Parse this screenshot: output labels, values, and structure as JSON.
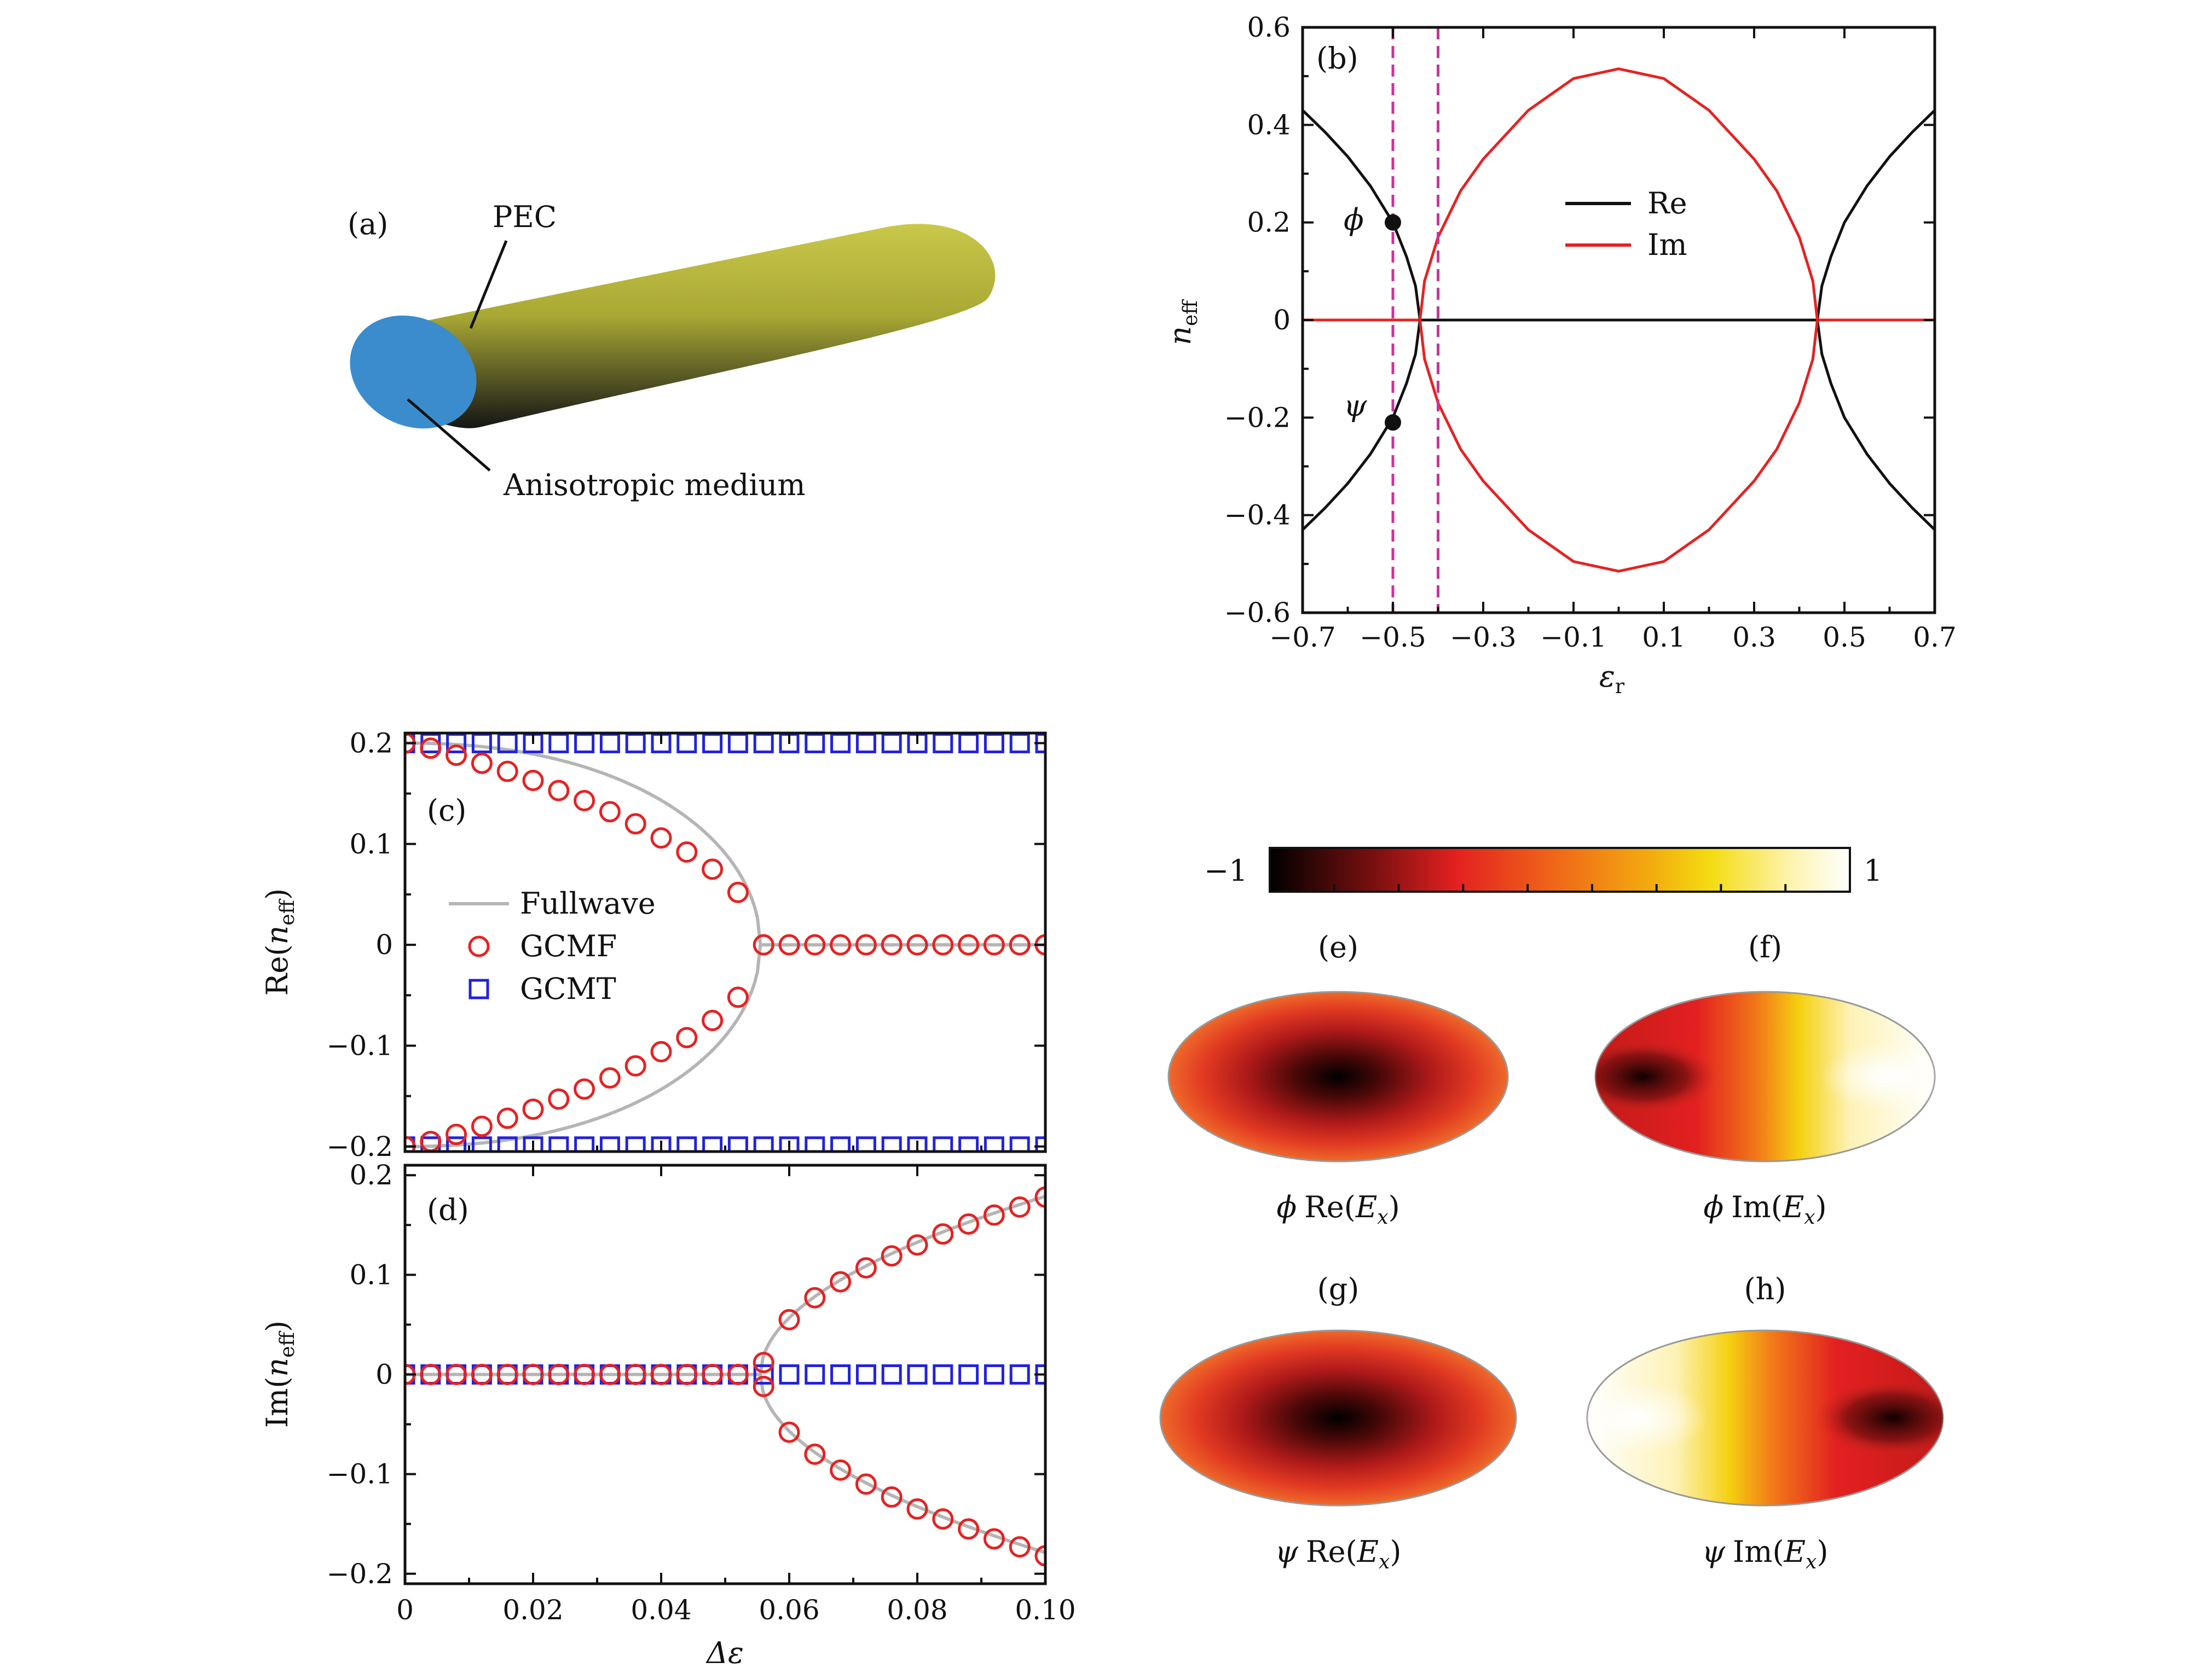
{
  "panel_a": {
    "label": "(a)",
    "pec_label": "PEC",
    "medium_label": "Anisotropic medium",
    "colors": {
      "cylinder": "#b5b536",
      "face": "#3b8ccc"
    }
  },
  "chart_data": [
    {
      "id": "b",
      "type": "line",
      "panel_label": "(b)",
      "xlabel": "εr",
      "ylabel": "neff",
      "xlim": [
        -0.7,
        0.7
      ],
      "ylim": [
        -0.6,
        0.6
      ],
      "xticks": [
        -0.7,
        -0.5,
        -0.3,
        -0.1,
        0.1,
        0.3,
        0.5,
        0.7
      ],
      "xtick_labels": [
        "−0.7",
        "−0.5",
        "−0.3",
        "−0.1",
        "0.1",
        "0.3",
        "0.5",
        "0.7"
      ],
      "yticks": [
        -0.6,
        -0.4,
        -0.2,
        0,
        0.2,
        0.4,
        0.6
      ],
      "ytick_labels": [
        "−0.6",
        "−0.4",
        "−0.2",
        "0",
        "0.2",
        "0.4",
        "0.6"
      ],
      "legend": [
        "Re",
        "Im"
      ],
      "legend_position": "upper-center",
      "series": [
        {
          "name": "Re",
          "color": "#111111",
          "x": [
            -0.7,
            -0.65,
            -0.6,
            -0.55,
            -0.5,
            -0.47,
            -0.45,
            -0.44,
            0.44,
            0.45,
            0.47,
            0.5,
            0.55,
            0.6,
            0.65,
            0.7
          ],
          "y_upper": [
            0.43,
            0.385,
            0.335,
            0.275,
            0.2,
            0.13,
            0.07,
            0.0,
            0.0,
            0.07,
            0.13,
            0.2,
            0.275,
            0.335,
            0.385,
            0.43
          ],
          "y_lower": [
            -0.43,
            -0.385,
            -0.335,
            -0.275,
            -0.2,
            -0.13,
            -0.07,
            0.0,
            0.0,
            -0.07,
            -0.13,
            -0.2,
            -0.275,
            -0.335,
            -0.385,
            -0.43
          ]
        },
        {
          "name": "Im",
          "color": "#e52222",
          "x": [
            -0.44,
            -0.43,
            -0.4,
            -0.35,
            -0.3,
            -0.2,
            -0.1,
            0.0,
            0.1,
            0.2,
            0.3,
            0.35,
            0.4,
            0.43,
            0.44
          ],
          "y_upper": [
            0.0,
            0.08,
            0.17,
            0.265,
            0.33,
            0.43,
            0.495,
            0.515,
            0.495,
            0.43,
            0.33,
            0.265,
            0.17,
            0.08,
            0.0
          ],
          "y_lower": [
            0.0,
            -0.08,
            -0.17,
            -0.265,
            -0.33,
            -0.43,
            -0.495,
            -0.515,
            -0.495,
            -0.43,
            -0.33,
            -0.265,
            -0.17,
            -0.08,
            0.0
          ]
        }
      ],
      "vlines": {
        "values": [
          -0.5,
          -0.4
        ],
        "color": "#cc3399"
      },
      "markers": [
        {
          "name": "ϕ",
          "x": -0.5,
          "y": 0.2
        },
        {
          "name": "ψ",
          "x": -0.5,
          "y": -0.21
        }
      ]
    },
    {
      "id": "c",
      "type": "scatter",
      "panel_label": "(c)",
      "xlabel": "",
      "ylabel": "Re(neff)",
      "xlim": [
        0,
        0.1
      ],
      "ylim": [
        -0.205,
        0.21
      ],
      "yticks": [
        -0.2,
        -0.1,
        0,
        0.1,
        0.2
      ],
      "ytick_labels": [
        "−0.2",
        "−0.1",
        "0",
        "0.1",
        "0.2"
      ],
      "legend": [
        "Fullwave",
        "GCMF",
        "GCMT"
      ],
      "legend_position": "center-left",
      "gcmf": {
        "x": [
          0,
          0.004,
          0.008,
          0.012,
          0.016,
          0.02,
          0.024,
          0.028,
          0.032,
          0.036,
          0.04,
          0.044,
          0.048,
          0.052,
          0.056,
          0.06,
          0.064,
          0.068,
          0.072,
          0.076,
          0.08,
          0.084,
          0.088,
          0.092,
          0.096,
          0.1
        ],
        "upper": [
          0.2,
          0.195,
          0.188,
          0.18,
          0.172,
          0.163,
          0.153,
          0.143,
          0.132,
          0.12,
          0.106,
          0.092,
          0.075,
          0.052,
          0,
          0,
          0,
          0,
          0,
          0,
          0,
          0,
          0,
          0,
          0,
          0
        ],
        "lower": [
          -0.2,
          -0.195,
          -0.188,
          -0.18,
          -0.172,
          -0.163,
          -0.153,
          -0.143,
          -0.132,
          -0.12,
          -0.106,
          -0.092,
          -0.075,
          -0.052,
          0,
          0,
          0,
          0,
          0,
          0,
          0,
          0,
          0,
          0,
          0,
          0
        ]
      },
      "gcmt": {
        "x": [
          0,
          0.004,
          0.008,
          0.012,
          0.016,
          0.02,
          0.024,
          0.028,
          0.032,
          0.036,
          0.04,
          0.044,
          0.048,
          0.052,
          0.056,
          0.06,
          0.064,
          0.068,
          0.072,
          0.076,
          0.08,
          0.084,
          0.088,
          0.092,
          0.096,
          0.1
        ],
        "upper": 0.2,
        "lower": -0.2
      },
      "fullwave_ep": 0.0555,
      "colors": {
        "gcmf": "#e52222",
        "gcmt": "#2222dd",
        "fullwave": "#b5b5b5"
      }
    },
    {
      "id": "d",
      "type": "scatter",
      "panel_label": "(d)",
      "xlabel": "Δε",
      "ylabel": "Im(neff)",
      "xlim": [
        0,
        0.1
      ],
      "ylim": [
        -0.21,
        0.21
      ],
      "xticks": [
        0,
        0.02,
        0.04,
        0.06,
        0.08,
        0.1
      ],
      "xtick_labels": [
        "0",
        "0.02",
        "0.04",
        "0.06",
        "0.08",
        "0.10"
      ],
      "yticks": [
        -0.2,
        -0.1,
        0,
        0.1,
        0.2
      ],
      "ytick_labels": [
        "−0.2",
        "−0.1",
        "0",
        "0.1",
        "0.2"
      ],
      "gcmf": {
        "x": [
          0,
          0.004,
          0.008,
          0.012,
          0.016,
          0.02,
          0.024,
          0.028,
          0.032,
          0.036,
          0.04,
          0.044,
          0.048,
          0.052,
          0.056,
          0.06,
          0.064,
          0.068,
          0.072,
          0.076,
          0.08,
          0.084,
          0.088,
          0.092,
          0.096,
          0.1
        ],
        "upper": [
          0,
          0,
          0,
          0,
          0,
          0,
          0,
          0,
          0,
          0,
          0,
          0,
          0,
          0,
          0.012,
          0.055,
          0.077,
          0.093,
          0.107,
          0.119,
          0.13,
          0.141,
          0.151,
          0.16,
          0.168,
          0.178
        ],
        "lower": [
          0,
          0,
          0,
          0,
          0,
          0,
          0,
          0,
          0,
          0,
          0,
          0,
          0,
          0,
          -0.012,
          -0.058,
          -0.08,
          -0.096,
          -0.11,
          -0.123,
          -0.135,
          -0.145,
          -0.155,
          -0.165,
          -0.173,
          -0.182
        ]
      },
      "gcmt": {
        "x": [
          0,
          0.004,
          0.008,
          0.012,
          0.016,
          0.02,
          0.024,
          0.028,
          0.032,
          0.036,
          0.04,
          0.044,
          0.048,
          0.052,
          0.056,
          0.06,
          0.064,
          0.068,
          0.072,
          0.076,
          0.08,
          0.084,
          0.088,
          0.092,
          0.096,
          0.1
        ],
        "value": 0
      },
      "fullwave_ep": 0.0555,
      "colors": {
        "gcmf": "#e52222",
        "gcmt": "#2222dd",
        "fullwave": "#b5b5b5"
      }
    },
    {
      "id": "colorbar",
      "type": "heatmap",
      "min_label": "−1",
      "max_label": "1",
      "range": [
        -1,
        1
      ],
      "panels": [
        {
          "label": "(e)",
          "caption_mode": "ϕ",
          "caption_part": "Re",
          "caption_field": "Ex",
          "pattern": "center-dark"
        },
        {
          "label": "(f)",
          "caption_mode": "ϕ",
          "caption_part": "Im",
          "caption_field": "Ex",
          "pattern": "left-dark-right-bright"
        },
        {
          "label": "(g)",
          "caption_mode": "ψ",
          "caption_part": "Re",
          "caption_field": "Ex",
          "pattern": "center-dark"
        },
        {
          "label": "(h)",
          "caption_mode": "ψ",
          "caption_part": "Im",
          "caption_field": "Ex",
          "pattern": "left-bright-right-dark"
        }
      ]
    }
  ]
}
